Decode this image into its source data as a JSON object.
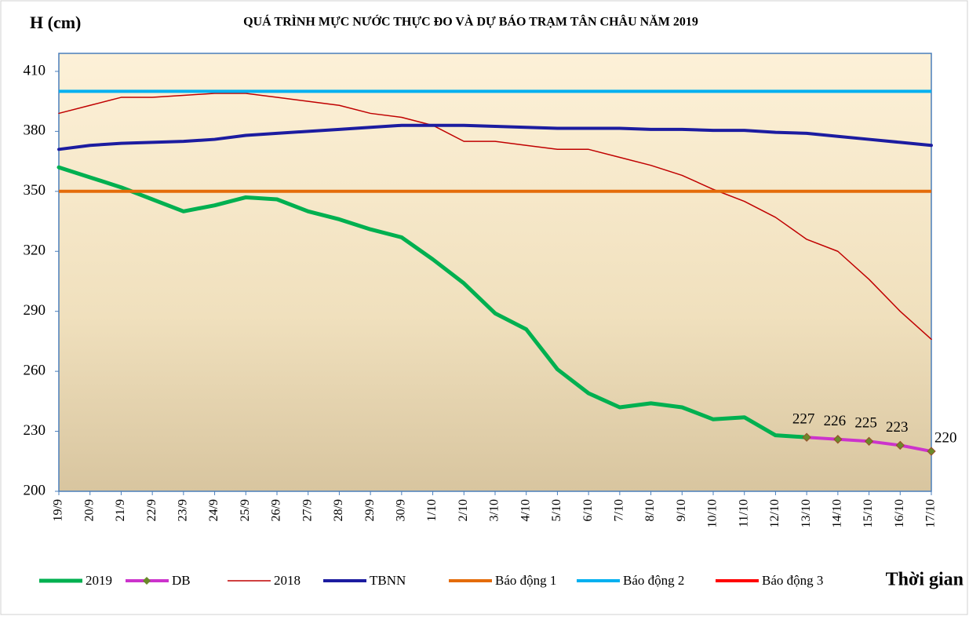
{
  "chart_data": {
    "type": "line",
    "title": "QUÁ TRÌNH MỰC NƯỚC THỰC ĐO VÀ DỰ BÁO TRẠM TÂN CHÂU NĂM 2019",
    "y_label": "H (cm)",
    "x_label": "Thời gian",
    "categories": [
      "19/9",
      "20/9",
      "21/9",
      "22/9",
      "23/9",
      "24/9",
      "25/9",
      "26/9",
      "27/9",
      "28/9",
      "29/9",
      "30/9",
      "1/10",
      "2/10",
      "3/10",
      "4/10",
      "5/10",
      "6/10",
      "7/10",
      "8/10",
      "9/10",
      "10/10",
      "11/10",
      "12/10",
      "13/10",
      "14/10",
      "15/10",
      "16/10",
      "17/10"
    ],
    "series": [
      {
        "name": "2019",
        "color": "#00b050",
        "width": 5,
        "values": [
          362,
          357,
          352,
          346,
          340,
          343,
          347,
          346,
          340,
          336,
          331,
          327,
          316,
          304,
          289,
          281,
          261,
          249,
          242,
          244,
          242,
          236,
          237,
          228,
          227,
          null,
          null,
          null,
          null
        ]
      },
      {
        "name": "DB",
        "color": "#cc33cc",
        "width": 4,
        "markers": true,
        "data_labels": true,
        "values": [
          null,
          null,
          null,
          null,
          null,
          null,
          null,
          null,
          null,
          null,
          null,
          null,
          null,
          null,
          null,
          null,
          null,
          null,
          null,
          null,
          null,
          null,
          null,
          null,
          227,
          226,
          225,
          223,
          220
        ]
      },
      {
        "name": "2018",
        "color": "#c00000",
        "width": 1.5,
        "values": [
          389,
          393,
          397,
          397,
          398,
          399,
          399,
          397,
          395,
          393,
          389,
          387,
          383,
          375,
          375,
          373,
          371,
          371,
          367,
          363,
          358,
          351,
          345,
          337,
          326,
          320,
          306,
          290,
          276
        ]
      },
      {
        "name": "TBNN",
        "color": "#1c1ca0",
        "width": 4,
        "values": [
          371,
          373,
          374,
          374.5,
          375,
          376,
          378,
          379,
          380,
          381,
          382,
          383,
          383,
          383,
          382.5,
          382,
          381.5,
          381.5,
          381.5,
          381,
          381,
          380.5,
          380.5,
          379.5,
          379,
          377.5,
          376,
          374.5,
          373
        ]
      },
      {
        "name": "Báo động 1",
        "color": "#e46c0a",
        "width": 4,
        "level": 350
      },
      {
        "name": "Báo động 2",
        "color": "#00b0f0",
        "width": 4,
        "level": 400
      },
      {
        "name": "Báo động 3",
        "color": "#ff0000",
        "width": 4
      }
    ],
    "ylim": [
      200,
      419
    ],
    "yticks": [
      200,
      230,
      260,
      290,
      320,
      350,
      380,
      410
    ]
  }
}
